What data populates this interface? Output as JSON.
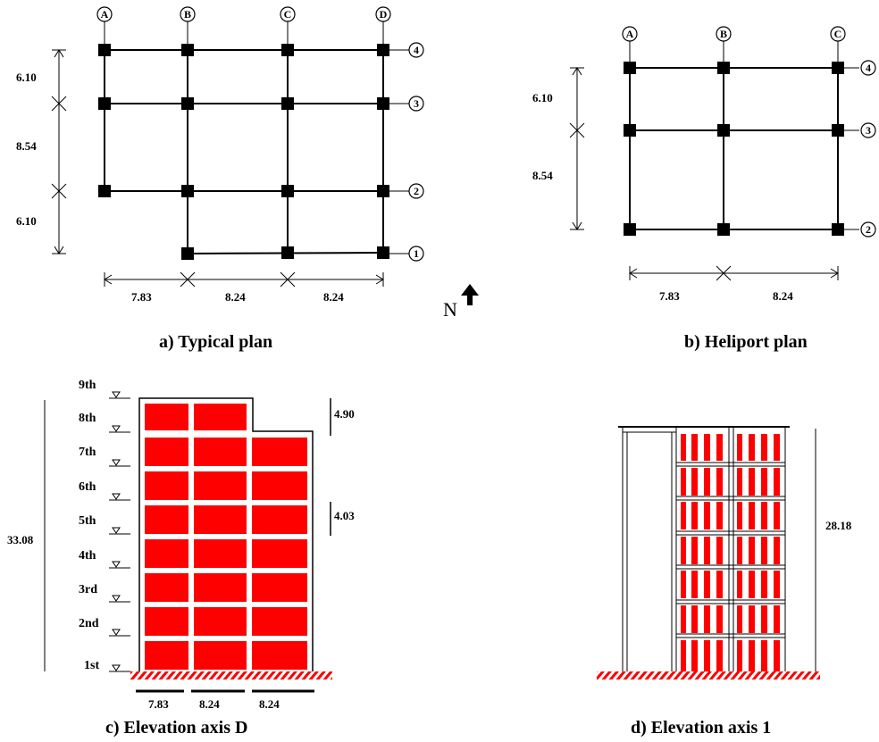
{
  "panels": {
    "typical_plan": {
      "caption": "a) Typical plan",
      "grid_cols": [
        "A",
        "B",
        "C",
        "D"
      ],
      "grid_rows": [
        "4",
        "3",
        "2",
        "1"
      ],
      "dims_vertical": [
        "6.10",
        "8.54",
        "6.10"
      ],
      "dims_horizontal": [
        "7.83",
        "8.24",
        "8.24"
      ],
      "north_label": "N"
    },
    "heliport_plan": {
      "caption": "b)  Heliport plan",
      "grid_cols": [
        "A",
        "B",
        "C"
      ],
      "grid_rows": [
        "4",
        "3",
        "2"
      ],
      "dims_vertical": [
        "6.10",
        "8.54"
      ],
      "dims_horizontal": [
        "7.83",
        "8.24"
      ]
    },
    "elevation_d": {
      "caption": "c) Elevation axis D",
      "floors": [
        "9th",
        "8th",
        "7th",
        "6th",
        "5th",
        "4th",
        "3rd",
        "2nd",
        "1st"
      ],
      "total_height": "33.08",
      "top_storey_height": "4.90",
      "typical_storey_height": "4.03",
      "bay_widths": [
        "7.83",
        "8.24",
        "8.24"
      ]
    },
    "elevation_1": {
      "caption": "d) Elevation axis 1",
      "height": "28.18"
    }
  },
  "colors": {
    "infill": "#ff0000",
    "ground_hatch": "#ff0000",
    "structure": "#000000"
  }
}
